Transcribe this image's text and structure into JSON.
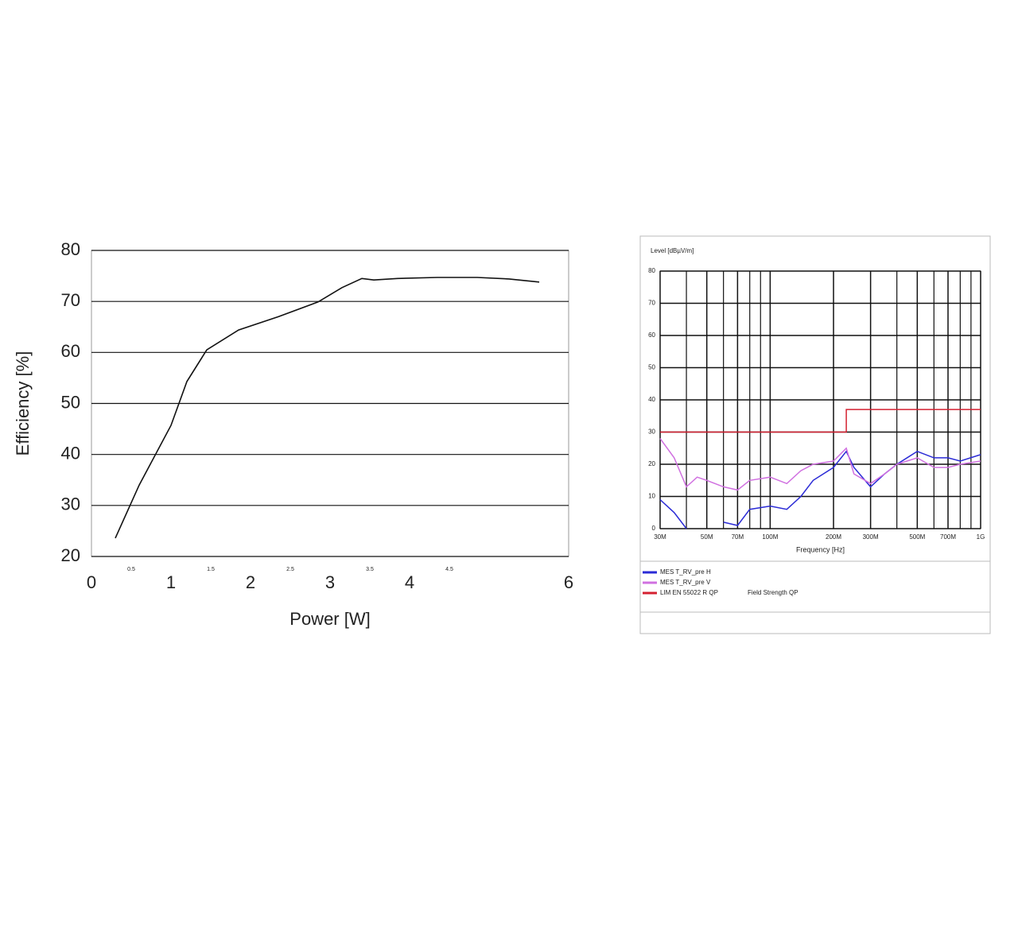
{
  "chart_data": [
    {
      "type": "line",
      "x_label": "Power [W]",
      "y_label": "Efficiency [%]",
      "x": [
        0.3,
        0.6,
        1.0,
        1.2,
        1.45,
        1.85,
        2.35,
        2.85,
        3.15,
        3.4,
        3.55,
        3.85,
        4.35,
        4.85,
        5.25,
        5.63
      ],
      "values": [
        23.6,
        34,
        45.7,
        54.3,
        60.5,
        64.4,
        67,
        69.9,
        72.7,
        74.5,
        74.2,
        74.5,
        74.7,
        74.7,
        74.4,
        73.8
      ],
      "color": "#111111",
      "xlim": [
        0,
        6
      ],
      "xticks": [
        0,
        1,
        2,
        3,
        4,
        6
      ],
      "xminor_ticks": [
        0.5,
        1.5,
        2.5,
        3.5,
        4.5
      ],
      "ylim": [
        20,
        80
      ],
      "yticks": [
        20,
        30,
        40,
        50,
        60,
        70,
        80
      ],
      "grid": true
    },
    {
      "type": "line",
      "title": "Level [dBµV/m]",
      "x_label": "Frequency [Hz]",
      "log_x": true,
      "x": [
        30000000,
        35000000,
        40000000,
        45000000,
        50000000,
        60000000,
        70000000,
        80000000,
        100000000,
        120000000,
        140000000,
        160000000,
        200000000,
        230000000,
        250000000,
        300000000,
        350000000,
        400000000,
        500000000,
        600000000,
        700000000,
        800000000,
        1000000000
      ],
      "series": [
        {
          "name": "MES T_RV_pre H",
          "color": "#2b2bd6",
          "values": [
            9,
            5,
            0,
            null,
            null,
            2,
            1,
            6,
            7,
            6,
            10,
            15,
            19,
            24,
            19,
            13,
            17,
            20,
            24,
            22,
            22,
            21,
            23
          ]
        },
        {
          "name": "MES T_RV_pre V",
          "color": "#d070e0",
          "values": [
            28,
            22,
            13,
            16,
            15,
            13,
            12,
            15,
            16,
            14,
            18,
            20,
            21,
            25,
            17,
            14,
            17,
            20,
            22,
            19,
            19,
            20,
            21
          ]
        },
        {
          "name": "LIM EN 55022 R QP",
          "color": "#d42030",
          "x": [
            30000000,
            230000000,
            230000000,
            1000000000
          ],
          "values": [
            30,
            30,
            37,
            37
          ]
        }
      ],
      "legend_note": "Field Strength QP",
      "xlim": [
        30000000,
        1000000000
      ],
      "xticks": [
        {
          "value": 30000000,
          "label": "30M"
        },
        {
          "value": 50000000,
          "label": "50M"
        },
        {
          "value": 70000000,
          "label": "70M"
        },
        {
          "value": 100000000,
          "label": "100M"
        },
        {
          "value": 200000000,
          "label": "200M"
        },
        {
          "value": 300000000,
          "label": "300M"
        },
        {
          "value": 500000000,
          "label": "500M"
        },
        {
          "value": 700000000,
          "label": "700M"
        },
        {
          "value": 1000000000,
          "label": "1G"
        }
      ],
      "xgrid_minor": [
        40000000,
        60000000,
        80000000,
        90000000,
        400000000,
        600000000,
        800000000,
        900000000
      ],
      "ylim": [
        0,
        80
      ],
      "yticks": [
        0,
        10,
        20,
        30,
        40,
        50,
        60,
        70,
        80
      ],
      "grid": true
    }
  ]
}
